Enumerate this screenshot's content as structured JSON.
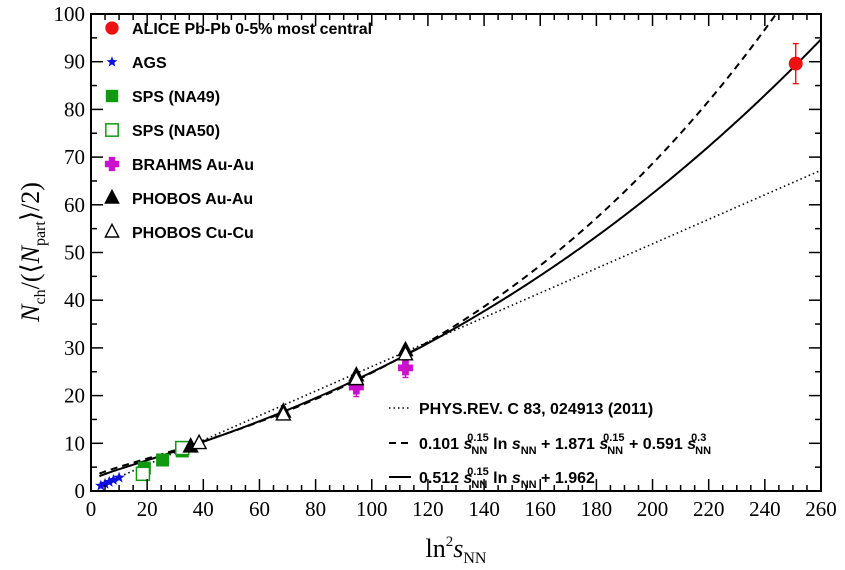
{
  "chart_data": {
    "type": "scatter",
    "title": "",
    "xlabel": "ln²s_NN",
    "ylabel": "N_ch/(⟨N_part⟩/2)",
    "xlim": [
      0,
      260
    ],
    "ylim": [
      0,
      100
    ],
    "x_ticks": [
      0,
      20,
      40,
      60,
      80,
      100,
      120,
      140,
      160,
      180,
      200,
      220,
      240,
      260
    ],
    "y_ticks": [
      0,
      10,
      20,
      30,
      40,
      50,
      60,
      70,
      80,
      90,
      100
    ],
    "grid": false,
    "legend_position": "top-left",
    "series": [
      {
        "name": "ALICE Pb-Pb 0-5% most central",
        "marker": "circle-filled",
        "color": "#ee1111",
        "points": [
          {
            "x": 251,
            "y": 89.6,
            "yerr": 4.2
          }
        ]
      },
      {
        "name": "AGS",
        "marker": "star",
        "color": "#1010dd",
        "points": [
          {
            "x": 3.5,
            "y": 1.1
          },
          {
            "x": 5,
            "y": 1.5
          },
          {
            "x": 6.5,
            "y": 1.9
          },
          {
            "x": 8,
            "y": 2.3
          },
          {
            "x": 10,
            "y": 2.8
          }
        ]
      },
      {
        "name": "SPS (NA49)",
        "marker": "square-filled",
        "color": "#119911",
        "points": [
          {
            "x": 19,
            "y": 4.8
          },
          {
            "x": 25.5,
            "y": 6.5
          },
          {
            "x": 32.5,
            "y": 8.4
          }
        ]
      },
      {
        "name": "SPS (NA50)",
        "marker": "square-open",
        "color": "#119911",
        "points": [
          {
            "x": 18.5,
            "y": 3.6
          },
          {
            "x": 32.5,
            "y": 9.0
          }
        ]
      },
      {
        "name": "BRAHMS Au-Au",
        "marker": "cross",
        "color": "#cc11cc",
        "points": [
          {
            "x": 94.5,
            "y": 21.8,
            "yerr": 2.0
          },
          {
            "x": 112,
            "y": 25.8,
            "yerr": 2.0
          }
        ]
      },
      {
        "name": "PHOBOS Au-Au",
        "marker": "triangle-filled",
        "color": "#000000",
        "points": [
          {
            "x": 35.5,
            "y": 9.3
          },
          {
            "x": 68.5,
            "y": 16.6
          },
          {
            "x": 94.5,
            "y": 24.2
          },
          {
            "x": 112,
            "y": 29.5
          }
        ]
      },
      {
        "name": "PHOBOS Cu-Cu",
        "marker": "triangle-open",
        "color": "#000000",
        "points": [
          {
            "x": 38.5,
            "y": 10.0
          },
          {
            "x": 68.5,
            "y": 16.0
          },
          {
            "x": 94.5,
            "y": 23.4
          },
          {
            "x": 112,
            "y": 28.6
          }
        ]
      }
    ],
    "fits": [
      {
        "name": "PHYS.REV. C 83, 024913 (2011)",
        "style": "dotted",
        "label": {
          "text": "PHYS.REV. C 83, 024913 (2011)"
        }
      },
      {
        "name": "0.101 s_NN^0.15 ln s_NN + 1.871 s_NN^0.15 + 0.591 s_NN^0.3",
        "style": "dashed",
        "label": {
          "p1": "0.101 ",
          "s1": "s",
          "sub1": "NN",
          "sup1": "0.15",
          "p2": " ln ",
          "s2": "s",
          "sub2": "NN",
          "p3": " + 1.871 ",
          "s3": "s",
          "sub3": "NN",
          "sup3": "0.15",
          "p4": " + 0.591 ",
          "s4": "s",
          "sub4": "NN",
          "sup4": "0.3"
        }
      },
      {
        "name": "0.512 s_NN^0.15 ln s_NN + 1.962",
        "style": "solid",
        "label": {
          "p1": "0.512 ",
          "s1": "s",
          "sub1": "NN",
          "sup1": "0.15",
          "p2": " ln ",
          "s2": "s",
          "sub2": "NN",
          "p3": " + 1.962"
        }
      }
    ],
    "legend": [
      {
        "label": "ALICE Pb-Pb 0-5% most central"
      },
      {
        "label": "AGS"
      },
      {
        "label": "SPS (NA49)"
      },
      {
        "label": "SPS (NA50)"
      },
      {
        "label": "BRAHMS Au-Au"
      },
      {
        "label": "PHOBOS Au-Au"
      },
      {
        "label": "PHOBOS Cu-Cu"
      }
    ],
    "axis_titles": {
      "y": {
        "n": "N",
        "ch": "ch",
        "mid": "/(⟨",
        "n2": "N",
        "part": "part",
        "end": "⟩/2)"
      },
      "x": {
        "ln": "ln",
        "sq": "2",
        "s": "s",
        "nn": "NN"
      }
    }
  }
}
